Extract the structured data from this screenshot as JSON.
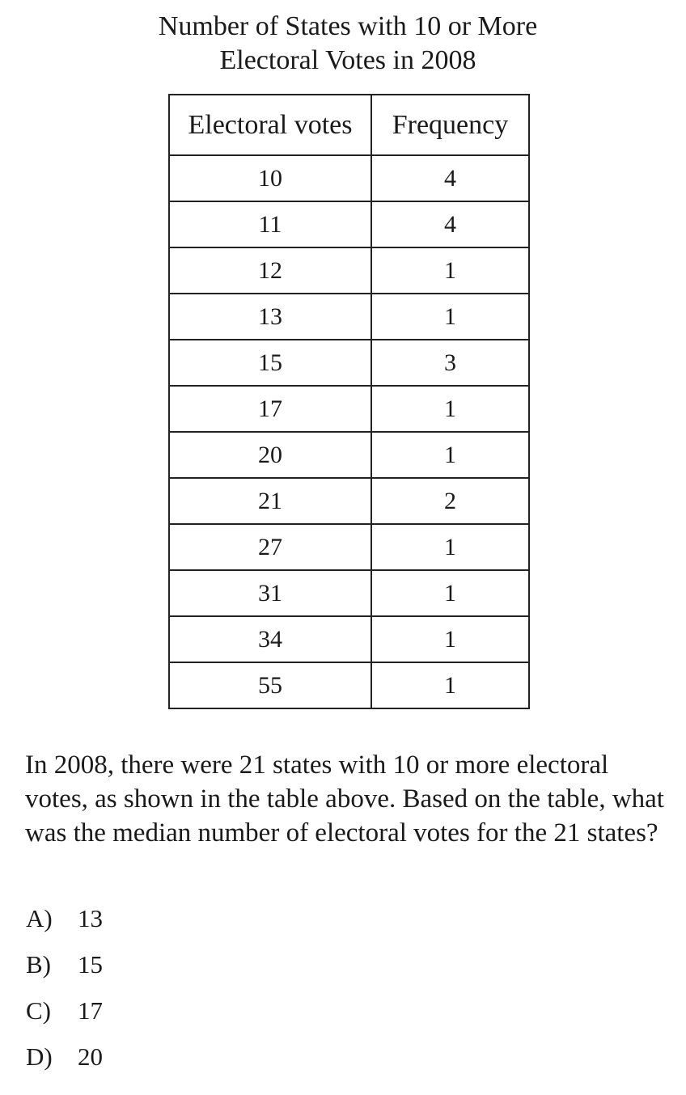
{
  "title": {
    "line1": "Number of States with 10 or More",
    "line2": "Electoral Votes in 2008"
  },
  "chart_data": {
    "type": "table",
    "columns": [
      "Electoral votes",
      "Frequency"
    ],
    "rows": [
      [
        "10",
        "4"
      ],
      [
        "11",
        "4"
      ],
      [
        "12",
        "1"
      ],
      [
        "13",
        "1"
      ],
      [
        "15",
        "3"
      ],
      [
        "17",
        "1"
      ],
      [
        "20",
        "1"
      ],
      [
        "21",
        "2"
      ],
      [
        "27",
        "1"
      ],
      [
        "31",
        "1"
      ],
      [
        "34",
        "1"
      ],
      [
        "55",
        "1"
      ]
    ]
  },
  "question": "In 2008, there were 21 states with 10 or more electoral votes, as shown in the table above.  Based on the table, what was the median number of electoral votes for the 21 states?",
  "choices": [
    {
      "letter": "A)",
      "text": "13"
    },
    {
      "letter": "B)",
      "text": "15"
    },
    {
      "letter": "C)",
      "text": "17"
    },
    {
      "letter": "D)",
      "text": "20"
    }
  ]
}
